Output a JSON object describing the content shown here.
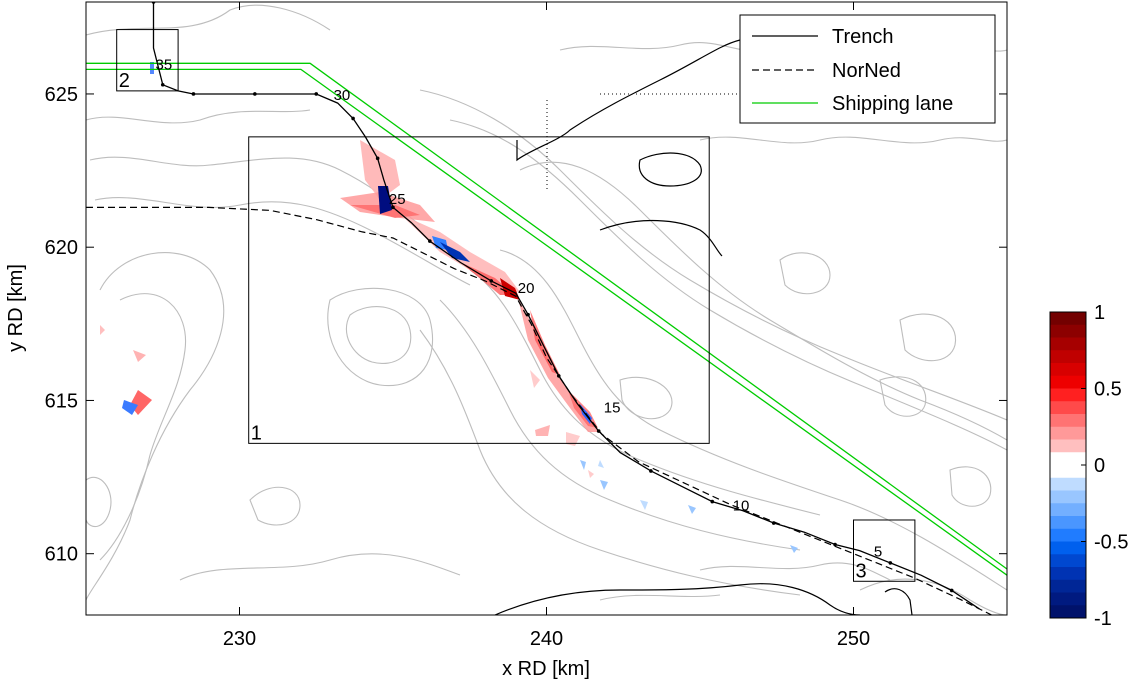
{
  "map": {
    "xlabel": "x RD [km]",
    "ylabel": "y RD [km]",
    "xlim": [
      225,
      255
    ],
    "ylim": [
      608,
      628
    ],
    "xticks": [
      230,
      240,
      250
    ],
    "yticks": [
      610,
      615,
      620,
      625
    ],
    "xtick_labels": [
      "230",
      "240",
      "250"
    ],
    "ytick_labels": [
      "610",
      "615",
      "620",
      "625"
    ]
  },
  "legend": {
    "items": [
      {
        "label": "Trench",
        "style": "solid",
        "color": "#000000"
      },
      {
        "label": "NorNed",
        "style": "dashed",
        "color": "#000000"
      },
      {
        "label": "Shipping lane",
        "style": "solid",
        "color": "#00cc00"
      }
    ]
  },
  "boxes": [
    {
      "label": "1",
      "x": [
        230.3,
        245.3
      ],
      "y": [
        613.6,
        623.6
      ]
    },
    {
      "label": "2",
      "x": [
        226.0,
        228.0
      ],
      "y": [
        625.1,
        627.1
      ]
    },
    {
      "label": "3",
      "x": [
        250.0,
        252.0
      ],
      "y": [
        609.1,
        611.1
      ]
    }
  ],
  "km_markers": [
    {
      "label": "35",
      "x": 227.2,
      "y": 626.0
    },
    {
      "label": "30",
      "x": 233.0,
      "y": 625.0
    },
    {
      "label": "25",
      "x": 234.8,
      "y": 621.6
    },
    {
      "label": "20",
      "x": 239.0,
      "y": 618.7
    },
    {
      "label": "15",
      "x": 241.8,
      "y": 614.8
    },
    {
      "label": "10",
      "x": 246.0,
      "y": 611.6
    },
    {
      "label": "5",
      "x": 250.6,
      "y": 610.1
    }
  ],
  "trench": {
    "x": [
      227.2,
      227.2,
      227.5,
      228.0,
      228.5,
      229.5,
      230.5,
      231.5,
      232.5,
      233.2,
      233.7,
      234.1,
      234.5,
      234.7,
      235.0,
      235.6,
      236.2,
      237.2,
      238.2,
      239.0,
      239.4,
      239.9,
      240.4,
      241.0,
      241.7,
      242.4,
      243.4,
      244.4,
      245.4,
      246.4,
      247.4,
      248.4,
      249.4,
      250.2,
      251.2,
      252.2,
      253.2,
      254.1
    ],
    "y": [
      628.0,
      626.5,
      625.3,
      625.1,
      625.0,
      625.0,
      625.0,
      625.0,
      625.0,
      624.7,
      624.2,
      623.6,
      622.9,
      622.2,
      621.3,
      620.8,
      620.2,
      619.5,
      618.9,
      618.5,
      617.8,
      616.8,
      615.8,
      614.9,
      614.0,
      613.3,
      612.7,
      612.2,
      611.7,
      611.4,
      611.0,
      610.7,
      610.3,
      610.1,
      609.7,
      609.3,
      608.8,
      608.2
    ]
  },
  "norned": {
    "x": [
      225.0,
      227.0,
      229.0,
      231.0,
      232.5,
      234.0,
      235.0,
      236.0,
      237.0,
      238.0,
      239.0,
      239.5,
      240.0,
      240.8,
      241.8,
      243.0,
      244.5,
      246.0,
      247.5,
      249.0,
      250.5,
      252.0,
      253.5,
      254.5
    ],
    "y": [
      621.3,
      621.3,
      621.3,
      621.2,
      620.9,
      620.5,
      620.3,
      619.8,
      619.3,
      618.9,
      618.4,
      617.5,
      616.4,
      615.2,
      613.9,
      613.0,
      612.3,
      611.6,
      611.0,
      610.4,
      609.8,
      609.2,
      608.5,
      608.0
    ]
  },
  "shipping_lane": [
    {
      "x": [
        225.0,
        232.3,
        255.0
      ],
      "y": [
        626.0,
        626.0,
        609.5
      ]
    },
    {
      "x": [
        225.0,
        232.0,
        255.0
      ],
      "y": [
        625.8,
        625.8,
        609.3
      ]
    }
  ],
  "colorbar": {
    "ticks": [
      1,
      0.5,
      0,
      -0.5,
      -1
    ],
    "tick_labels": [
      "1",
      "0.5",
      "0",
      "-0.5",
      "-1"
    ],
    "colors": [
      "#730000",
      "#8c0000",
      "#a60000",
      "#c00000",
      "#d80000",
      "#ee0000",
      "#ff2020",
      "#ff4a4a",
      "#ff7373",
      "#ff9999",
      "#ffbfbf",
      "#ffffff",
      "#ffffff",
      "#bfdcff",
      "#99c6ff",
      "#73afff",
      "#4a96ff",
      "#207cff",
      "#0060ee",
      "#0048d0",
      "#0033b3",
      "#002696",
      "#001a80",
      "#00126b"
    ]
  }
}
